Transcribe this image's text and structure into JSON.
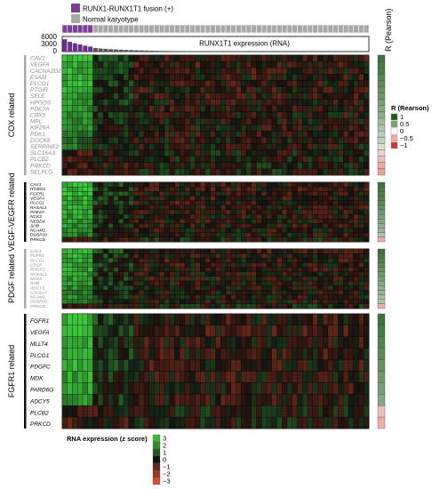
{
  "legend_top": {
    "fusion": {
      "label": "RUNX1-RUNX1T1 fusion (+)",
      "color": "#7b3f98"
    },
    "normal": {
      "label": "Normal karyotype",
      "color": "#a9a9a9"
    }
  },
  "expression_bar": {
    "label": "RUNX1T1 expression (RNA)",
    "ticks": [
      "6000",
      "3000",
      "0"
    ],
    "ymax": 6000
  },
  "pearson_label": "R (Pearson)",
  "r_legend": {
    "title": "R (Rearson)",
    "items": [
      {
        "label": "1",
        "color": "#1e5c1e"
      },
      {
        "label": "0.5",
        "color": "#7fa36a"
      },
      {
        "label": "0",
        "color": "#ffffff"
      },
      {
        "label": "−0.5",
        "color": "#f2a9a0"
      },
      {
        "label": "−1",
        "color": "#d0342c"
      }
    ]
  },
  "z_legend": {
    "title": "RNA expression (z score)",
    "items": [
      {
        "label": "3",
        "color": "#3fb43f"
      },
      {
        "label": "2",
        "color": "#2f8a2f"
      },
      {
        "label": "1",
        "color": "#1f5a1f"
      },
      {
        "label": "0",
        "color": "#111111"
      },
      {
        "label": "−1",
        "color": "#5a2a1a"
      },
      {
        "label": "−2",
        "color": "#963c25"
      },
      {
        "label": "−3",
        "color": "#d2502c"
      }
    ]
  },
  "colors": {
    "fusion": "#7b3f98",
    "normal": "#a9a9a9",
    "bar_fusion": "#6b2f88",
    "bar_normal": "#555555"
  },
  "chart_data": {
    "type": "heatmap",
    "n_samples": 60,
    "n_fusion": 6,
    "expression": [
      5200,
      4100,
      3500,
      3000,
      2500,
      2100,
      1500,
      1300,
      1150,
      1000,
      900,
      800,
      700,
      620,
      550,
      490,
      430,
      380,
      340,
      300,
      270,
      240,
      210,
      190,
      170,
      150,
      135,
      120,
      110,
      100,
      90,
      80,
      72,
      64,
      56,
      50,
      44,
      38,
      33,
      28,
      24,
      20,
      17,
      14,
      12,
      10,
      8,
      7,
      6,
      5,
      4,
      3,
      3,
      2,
      2,
      1,
      1,
      1,
      0,
      0
    ],
    "groups": [
      {
        "name": "COX related",
        "label_style": "gray",
        "genes": [
          {
            "name": "CAV1",
            "r": 0.85
          },
          {
            "name": "VEGFA",
            "r": 0.8
          },
          {
            "name": "CACNA2D2",
            "r": 0.78
          },
          {
            "name": "ESAM",
            "r": 0.72
          },
          {
            "name": "PLCG1",
            "r": 0.7
          },
          {
            "name": "PTGIR",
            "r": 0.65
          },
          {
            "name": "SELE",
            "r": 0.6
          },
          {
            "name": "HPGDS",
            "r": 0.55
          },
          {
            "name": "PDE2A",
            "r": 0.5
          },
          {
            "name": "CBX5",
            "r": 0.45
          },
          {
            "name": "MPL",
            "r": 0.35
          },
          {
            "name": "KIF26A",
            "r": 0.3
          },
          {
            "name": "PDK1",
            "r": 0.25
          },
          {
            "name": "DOCK8",
            "r": 0.2
          },
          {
            "name": "SERPINE2",
            "r": 0.1
          },
          {
            "name": "SLC16A3",
            "r": -0.1
          },
          {
            "name": "PLCB2",
            "r": -0.2
          },
          {
            "name": "PRKCD",
            "r": -0.3
          },
          {
            "name": "SELPLG",
            "r": -0.35
          }
        ]
      },
      {
        "name": "VEGF-VEGFR related",
        "label_style": "black",
        "genes": [
          {
            "name": "CAV1",
            "r": 0.85
          },
          {
            "name": "ROBO1",
            "r": 0.8
          },
          {
            "name": "FGFR1",
            "r": 0.78
          },
          {
            "name": "VEGFA",
            "r": 0.75
          },
          {
            "name": "PLCG1",
            "r": 0.7
          },
          {
            "name": "RASAL1",
            "r": 0.65
          },
          {
            "name": "PDE2A",
            "r": 0.6
          },
          {
            "name": "NCK2",
            "r": 0.55
          },
          {
            "name": "NEDD4",
            "r": 0.5
          },
          {
            "name": "SHB",
            "r": 0.45
          },
          {
            "name": "NCAM1",
            "r": 0.4
          },
          {
            "name": "DUSP10",
            "r": 0.3
          },
          {
            "name": "PRKCD",
            "r": -0.3
          }
        ]
      },
      {
        "name": "PDGF related",
        "label_style": "gray",
        "genes": [
          {
            "name": "CAV1",
            "r": 0.85
          },
          {
            "name": "FGFR1",
            "r": 0.8
          },
          {
            "name": "PLCG1",
            "r": 0.75
          },
          {
            "name": "CD19",
            "r": 0.7
          },
          {
            "name": "PDGFC",
            "r": 0.65
          },
          {
            "name": "RASAL1",
            "r": 0.6
          },
          {
            "name": "NCK2",
            "r": 0.55
          },
          {
            "name": "SHB",
            "r": 0.5
          },
          {
            "name": "ADCY5",
            "r": 0.45
          },
          {
            "name": "COL6A3",
            "r": 0.4
          },
          {
            "name": "NCAM1",
            "r": 0.35
          },
          {
            "name": "DUSP10",
            "r": 0.3
          },
          {
            "name": "PRKCD",
            "r": -0.3
          }
        ]
      },
      {
        "name": "FGFR1 related",
        "label_style": "black",
        "genes": [
          {
            "name": "FGFR1",
            "r": 0.85
          },
          {
            "name": "VEGFA",
            "r": 0.8
          },
          {
            "name": "MLLT4",
            "r": 0.75
          },
          {
            "name": "PLCG1",
            "r": 0.7
          },
          {
            "name": "PDGFC",
            "r": 0.65
          },
          {
            "name": "MDK",
            "r": 0.6
          },
          {
            "name": "PARD6G",
            "r": 0.55
          },
          {
            "name": "ADCY5",
            "r": 0.5
          },
          {
            "name": "PLCB2",
            "r": -0.2
          },
          {
            "name": "PRKCD",
            "r": -0.3
          }
        ]
      }
    ]
  }
}
